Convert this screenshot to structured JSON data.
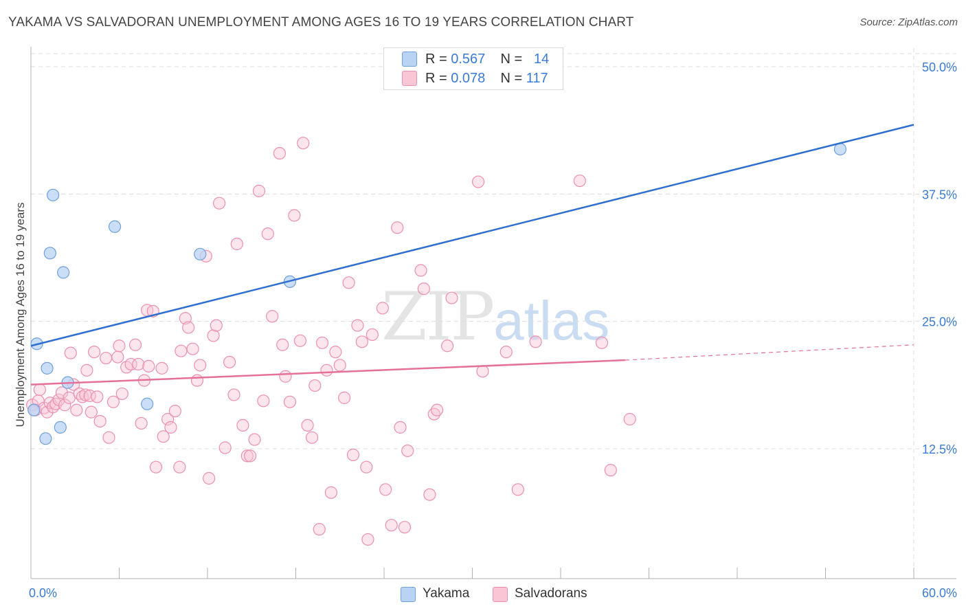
{
  "header": {
    "title": "YAKAMA VS SALVADORAN UNEMPLOYMENT AMONG AGES 16 TO 19 YEARS CORRELATION CHART",
    "source": "Source: ZipAtlas.com"
  },
  "watermark": {
    "zip": "ZIP",
    "atlas": "atlas"
  },
  "legend_top": {
    "rows": [
      {
        "r_label": "R = ",
        "r_value": "0.567",
        "n_label": "N = ",
        "n_value": "14"
      },
      {
        "r_label": "R = ",
        "r_value": "0.078",
        "n_label": "N = ",
        "n_value": "117"
      }
    ]
  },
  "legend_bottom": {
    "items": [
      {
        "label": "Yakama"
      },
      {
        "label": "Salvadorans"
      }
    ]
  },
  "colors": {
    "yakama_fill": "#b9d3f5",
    "yakama_stroke": "#6e9fde",
    "yakama_line": "#2f6fd0",
    "salv_fill": "#f9c6d6",
    "salv_stroke": "#ec8fae",
    "salv_line": "#e5709a",
    "axis_text": "#3a7bd5",
    "grid": "#dcdcdc"
  },
  "chart_data": {
    "type": "scatter",
    "title": "YAKAMA VS SALVADORAN UNEMPLOYMENT AMONG AGES 16 TO 19 YEARS CORRELATION CHART",
    "xlabel": "",
    "ylabel": "Unemployment Among Ages 16 to 19 years",
    "xlim": [
      0,
      60
    ],
    "ylim": [
      0,
      52
    ],
    "x_tick_labels": [
      "0.0%",
      "60.0%"
    ],
    "y_ticks": [
      12.5,
      25.0,
      37.5,
      50.0
    ],
    "y_tick_labels": [
      "12.5%",
      "25.0%",
      "37.5%",
      "50.0%"
    ],
    "grid": true,
    "legend_position": "top-center",
    "series": [
      {
        "name": "Yakama",
        "points": [
          [
            0.2,
            16.3
          ],
          [
            0.4,
            22.8
          ],
          [
            1.0,
            13.5
          ],
          [
            1.1,
            20.4
          ],
          [
            1.3,
            31.7
          ],
          [
            1.5,
            37.4
          ],
          [
            2.0,
            14.6
          ],
          [
            2.2,
            29.8
          ],
          [
            2.5,
            19.0
          ],
          [
            5.7,
            34.3
          ],
          [
            7.9,
            16.9
          ],
          [
            11.5,
            31.6
          ],
          [
            17.6,
            28.9
          ],
          [
            55.0,
            41.9
          ]
        ],
        "trend": {
          "x": [
            0,
            60
          ],
          "y": [
            22.6,
            44.3
          ]
        }
      },
      {
        "name": "Salvadorans",
        "points": [
          [
            0.1,
            16.8
          ],
          [
            0.3,
            16.3
          ],
          [
            0.5,
            17.2
          ],
          [
            0.6,
            18.3
          ],
          [
            0.9,
            16.5
          ],
          [
            1.1,
            16.1
          ],
          [
            1.3,
            17.0
          ],
          [
            1.5,
            16.6
          ],
          [
            1.7,
            16.9
          ],
          [
            1.9,
            17.3
          ],
          [
            2.1,
            18.0
          ],
          [
            2.3,
            16.8
          ],
          [
            2.6,
            17.5
          ],
          [
            2.7,
            21.9
          ],
          [
            2.9,
            18.8
          ],
          [
            3.1,
            16.3
          ],
          [
            3.3,
            17.9
          ],
          [
            3.5,
            17.6
          ],
          [
            3.7,
            17.8
          ],
          [
            3.8,
            20.2
          ],
          [
            4.0,
            17.7
          ],
          [
            4.1,
            16.1
          ],
          [
            4.3,
            22.0
          ],
          [
            4.5,
            17.6
          ],
          [
            4.7,
            15.2
          ],
          [
            5.1,
            21.4
          ],
          [
            5.3,
            13.6
          ],
          [
            5.6,
            17.1
          ],
          [
            5.9,
            21.5
          ],
          [
            6.0,
            22.6
          ],
          [
            6.2,
            17.9
          ],
          [
            6.5,
            20.5
          ],
          [
            6.8,
            20.8
          ],
          [
            7.1,
            22.7
          ],
          [
            7.3,
            20.8
          ],
          [
            7.5,
            15.0
          ],
          [
            7.7,
            19.2
          ],
          [
            7.9,
            26.1
          ],
          [
            8.0,
            20.6
          ],
          [
            8.3,
            26.0
          ],
          [
            8.5,
            10.7
          ],
          [
            8.9,
            20.4
          ],
          [
            9.0,
            13.7
          ],
          [
            9.3,
            15.4
          ],
          [
            9.5,
            14.6
          ],
          [
            9.8,
            16.2
          ],
          [
            10.1,
            10.7
          ],
          [
            10.2,
            22.1
          ],
          [
            10.5,
            25.3
          ],
          [
            10.7,
            24.4
          ],
          [
            11.0,
            22.3
          ],
          [
            11.3,
            19.2
          ],
          [
            11.5,
            20.7
          ],
          [
            11.9,
            31.4
          ],
          [
            12.1,
            9.6
          ],
          [
            12.4,
            23.6
          ],
          [
            12.6,
            24.6
          ],
          [
            12.8,
            36.6
          ],
          [
            13.2,
            12.6
          ],
          [
            13.5,
            21.0
          ],
          [
            13.8,
            17.8
          ],
          [
            14.0,
            32.6
          ],
          [
            14.4,
            14.8
          ],
          [
            14.7,
            11.8
          ],
          [
            14.9,
            11.8
          ],
          [
            15.2,
            13.4
          ],
          [
            15.5,
            37.8
          ],
          [
            15.8,
            17.2
          ],
          [
            16.1,
            33.6
          ],
          [
            16.4,
            25.5
          ],
          [
            16.9,
            41.5
          ],
          [
            17.1,
            22.7
          ],
          [
            17.3,
            19.6
          ],
          [
            17.6,
            17.1
          ],
          [
            17.9,
            35.4
          ],
          [
            18.3,
            23.1
          ],
          [
            18.5,
            42.5
          ],
          [
            18.8,
            14.8
          ],
          [
            19.1,
            13.6
          ],
          [
            19.3,
            18.7
          ],
          [
            19.6,
            4.6
          ],
          [
            19.8,
            22.9
          ],
          [
            20.1,
            20.2
          ],
          [
            20.4,
            8.2
          ],
          [
            20.7,
            22.0
          ],
          [
            21.0,
            20.7
          ],
          [
            21.3,
            17.5
          ],
          [
            21.6,
            28.8
          ],
          [
            21.9,
            11.9
          ],
          [
            22.2,
            24.6
          ],
          [
            22.5,
            23.0
          ],
          [
            22.8,
            10.7
          ],
          [
            22.9,
            3.6
          ],
          [
            23.2,
            23.7
          ],
          [
            23.9,
            26.3
          ],
          [
            24.1,
            8.5
          ],
          [
            24.5,
            5.0
          ],
          [
            24.9,
            34.2
          ],
          [
            25.1,
            14.6
          ],
          [
            25.4,
            4.8
          ],
          [
            25.6,
            12.3
          ],
          [
            26.5,
            30.0
          ],
          [
            26.7,
            28.2
          ],
          [
            27.1,
            8.0
          ],
          [
            27.4,
            15.9
          ],
          [
            27.6,
            16.3
          ],
          [
            28.3,
            22.6
          ],
          [
            28.6,
            27.3
          ],
          [
            30.4,
            38.7
          ],
          [
            30.7,
            20.1
          ],
          [
            32.3,
            22.0
          ],
          [
            33.1,
            8.5
          ],
          [
            34.3,
            23.0
          ],
          [
            37.3,
            38.8
          ],
          [
            38.8,
            22.9
          ],
          [
            39.4,
            10.4
          ],
          [
            40.7,
            15.4
          ]
        ],
        "trend": {
          "x": [
            0,
            40.4
          ],
          "y": [
            18.8,
            21.2
          ],
          "dashed_to": {
            "x": 60,
            "y": 22.7
          }
        }
      }
    ]
  }
}
